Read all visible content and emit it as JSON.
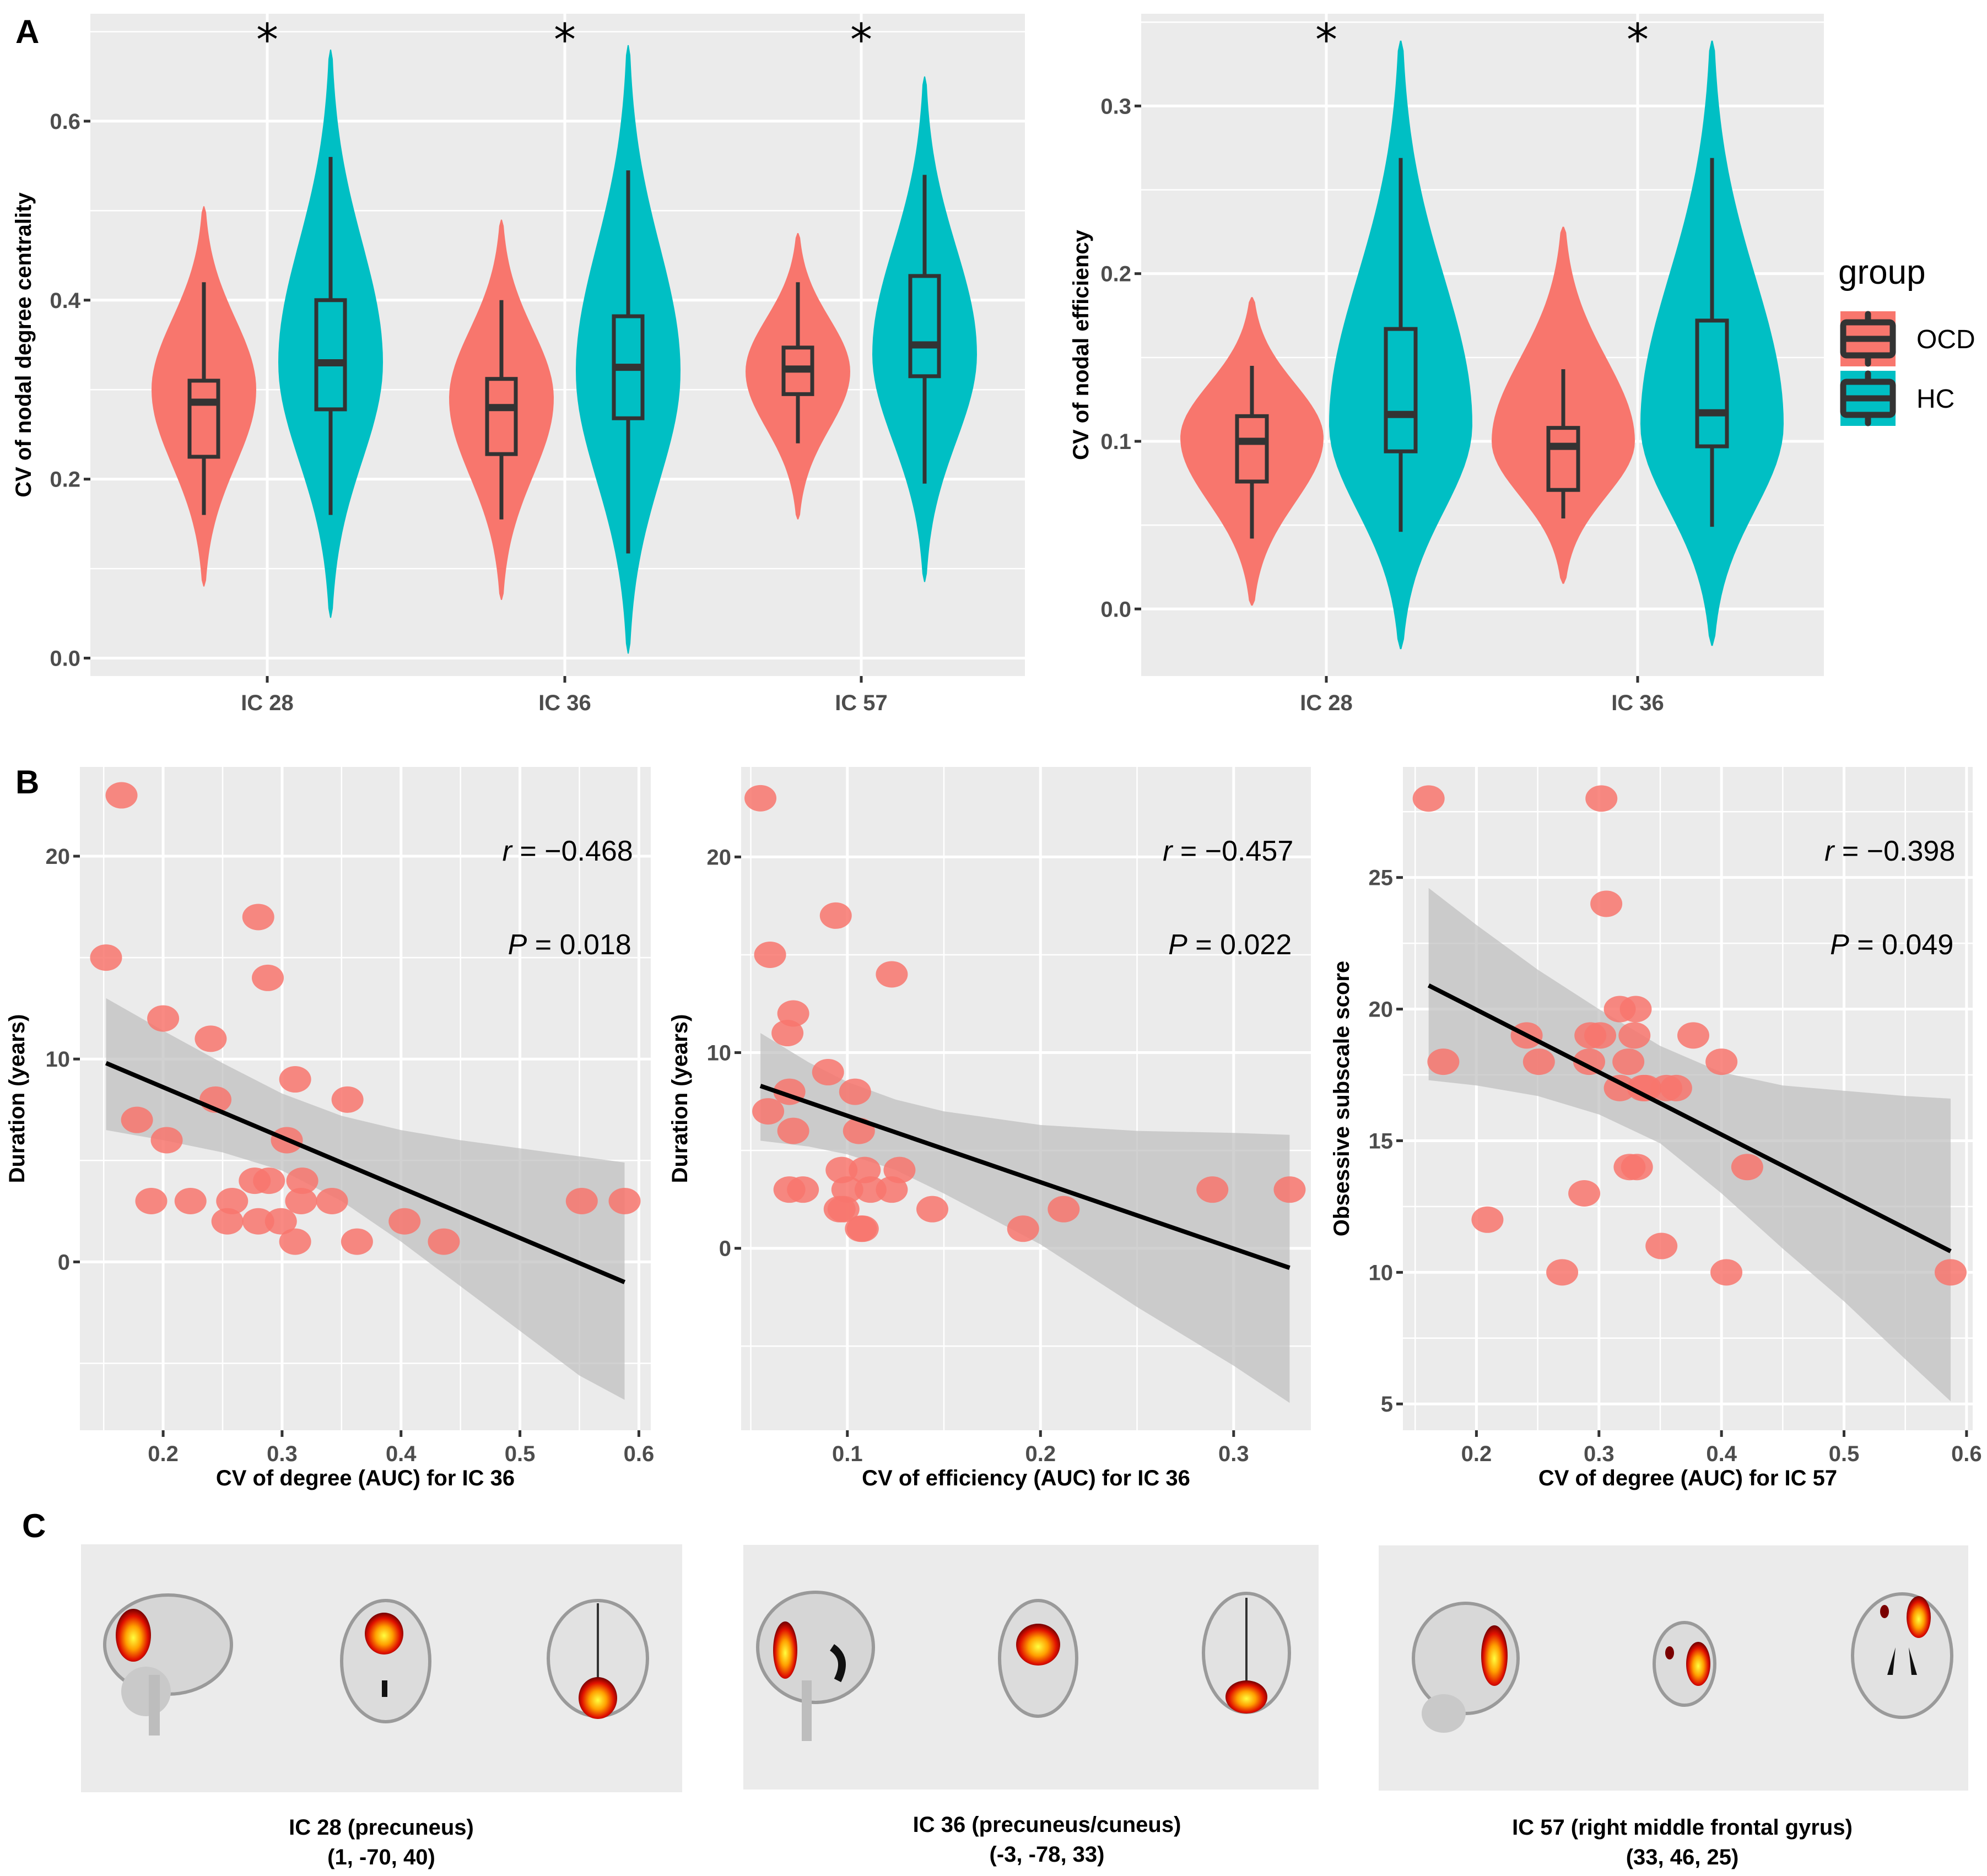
{
  "figure": {
    "panel_labels": [
      "A",
      "B",
      "C"
    ],
    "colors": {
      "OCD": "#F8766D",
      "HC": "#00BFC4",
      "panel_bg": "#EBEBEB",
      "grid": "#FFFFFF",
      "box_line": "#333333",
      "point": "#F8766D",
      "ci_band": "#BEBEBE",
      "fit_line": "#000000"
    }
  },
  "chart_data": [
    {
      "id": "A1",
      "type": "violin",
      "title": "",
      "ylabel": "CV of nodal degree centrality",
      "xlabel": "",
      "categories": [
        "IC 28",
        "IC 36",
        "IC 57"
      ],
      "ylim": [
        -0.02,
        0.72
      ],
      "yticks": [
        0.0,
        0.2,
        0.4,
        0.6
      ],
      "yticklabels": [
        "0.0",
        "0.2",
        "0.4",
        "0.6"
      ],
      "significance": [
        "*",
        "*",
        "*"
      ],
      "series": [
        {
          "name": "OCD",
          "boxes": [
            {
              "min": 0.16,
              "q1": 0.225,
              "median": 0.286,
              "q3": 0.31,
              "max": 0.42,
              "vmin": 0.08,
              "vmax": 0.505,
              "mode": 0.3
            },
            {
              "min": 0.155,
              "q1": 0.228,
              "median": 0.28,
              "q3": 0.312,
              "max": 0.4,
              "vmin": 0.065,
              "vmax": 0.49,
              "mode": 0.29
            },
            {
              "min": 0.24,
              "q1": 0.295,
              "median": 0.323,
              "q3": 0.347,
              "max": 0.42,
              "vmin": 0.155,
              "vmax": 0.475,
              "mode": 0.32
            }
          ]
        },
        {
          "name": "HC",
          "boxes": [
            {
              "min": 0.16,
              "q1": 0.278,
              "median": 0.33,
              "q3": 0.4,
              "max": 0.56,
              "vmin": 0.045,
              "vmax": 0.68,
              "mode": 0.33
            },
            {
              "min": 0.117,
              "q1": 0.268,
              "median": 0.325,
              "q3": 0.382,
              "max": 0.545,
              "vmin": 0.005,
              "vmax": 0.685,
              "mode": 0.32
            },
            {
              "min": 0.195,
              "q1": 0.315,
              "median": 0.35,
              "q3": 0.427,
              "max": 0.54,
              "vmin": 0.085,
              "vmax": 0.65,
              "mode": 0.34
            }
          ]
        }
      ]
    },
    {
      "id": "A2",
      "type": "violin",
      "title": "",
      "ylabel": "CV of nodal efficiency",
      "xlabel": "",
      "categories": [
        "IC 28",
        "IC 36"
      ],
      "ylim": [
        -0.04,
        0.355
      ],
      "yticks": [
        0.0,
        0.1,
        0.2,
        0.3
      ],
      "yticklabels": [
        "0.0",
        "0.1",
        "0.2",
        "0.3"
      ],
      "significance": [
        "*",
        "*"
      ],
      "series": [
        {
          "name": "OCD",
          "boxes": [
            {
              "min": 0.042,
              "q1": 0.076,
              "median": 0.1,
              "q3": 0.115,
              "max": 0.145,
              "vmin": 0.002,
              "vmax": 0.186,
              "mode": 0.102
            },
            {
              "min": 0.054,
              "q1": 0.071,
              "median": 0.097,
              "q3": 0.108,
              "max": 0.143,
              "vmin": 0.015,
              "vmax": 0.228,
              "mode": 0.1
            }
          ]
        },
        {
          "name": "HC",
          "boxes": [
            {
              "min": 0.046,
              "q1": 0.094,
              "median": 0.116,
              "q3": 0.167,
              "max": 0.269,
              "vmin": -0.024,
              "vmax": 0.339,
              "mode": 0.11
            },
            {
              "min": 0.049,
              "q1": 0.097,
              "median": 0.117,
              "q3": 0.172,
              "max": 0.269,
              "vmin": -0.022,
              "vmax": 0.339,
              "mode": 0.11
            }
          ]
        }
      ],
      "legend": {
        "title": "group",
        "entries": [
          "OCD",
          "HC"
        ],
        "position": "right"
      }
    },
    {
      "id": "B1",
      "type": "scatter",
      "xlabel": "CV of degree (AUC) for IC 36",
      "ylabel": "Duration (years)",
      "xlim": [
        0.13,
        0.61
      ],
      "ylim": [
        -8.3,
        24.4
      ],
      "xticks": [
        0.2,
        0.3,
        0.4,
        0.5,
        0.6
      ],
      "xticklabels": [
        "0.2",
        "0.3",
        "0.4",
        "0.5",
        "0.6"
      ],
      "yticks": [
        0,
        10,
        20
      ],
      "yticklabels": [
        "0",
        "10",
        "20"
      ],
      "annotation": {
        "r_label": "r",
        "r_value": "= −0.468",
        "p_label": "P",
        "p_value": "= 0.018"
      },
      "points": [
        [
          0.165,
          23
        ],
        [
          0.152,
          15
        ],
        [
          0.28,
          17
        ],
        [
          0.288,
          14
        ],
        [
          0.2,
          12
        ],
        [
          0.24,
          11
        ],
        [
          0.244,
          8
        ],
        [
          0.178,
          7
        ],
        [
          0.203,
          6
        ],
        [
          0.311,
          9
        ],
        [
          0.355,
          8
        ],
        [
          0.304,
          6
        ],
        [
          0.19,
          3
        ],
        [
          0.223,
          3
        ],
        [
          0.258,
          3
        ],
        [
          0.254,
          2
        ],
        [
          0.277,
          4
        ],
        [
          0.289,
          4
        ],
        [
          0.28,
          2
        ],
        [
          0.299,
          2
        ],
        [
          0.316,
          3
        ],
        [
          0.317,
          4
        ],
        [
          0.311,
          1
        ],
        [
          0.342,
          3
        ],
        [
          0.363,
          1
        ],
        [
          0.403,
          2
        ],
        [
          0.436,
          1
        ],
        [
          0.552,
          3
        ],
        [
          0.588,
          3
        ]
      ],
      "fit": {
        "x": [
          0.152,
          0.588
        ],
        "y": [
          9.8,
          -1.0
        ]
      },
      "ci": {
        "x": [
          0.152,
          0.2,
          0.25,
          0.3,
          0.35,
          0.4,
          0.45,
          0.5,
          0.55,
          0.588
        ],
        "upper": [
          13.0,
          11.4,
          9.8,
          8.3,
          7.2,
          6.5,
          6.0,
          5.6,
          5.2,
          4.9
        ],
        "lower": [
          6.5,
          6.0,
          5.4,
          4.5,
          3.0,
          1.0,
          -1.2,
          -3.4,
          -5.6,
          -6.8
        ]
      }
    },
    {
      "id": "B2",
      "type": "scatter",
      "xlabel": "CV of efficiency (AUC) for IC 36",
      "ylabel": "Duration (years)",
      "xlim": [
        0.045,
        0.34
      ],
      "ylim": [
        -9.3,
        24.6
      ],
      "xticks": [
        0.1,
        0.2,
        0.3
      ],
      "xticklabels": [
        "0.1",
        "0.2",
        "0.3"
      ],
      "yticks": [
        0,
        10,
        20
      ],
      "yticklabels": [
        "0",
        "10",
        "20"
      ],
      "annotation": {
        "r_label": "r",
        "r_value": "= −0.457",
        "p_label": "P",
        "p_value": "= 0.022"
      },
      "points": [
        [
          0.055,
          23
        ],
        [
          0.094,
          17
        ],
        [
          0.06,
          15
        ],
        [
          0.123,
          14
        ],
        [
          0.072,
          12
        ],
        [
          0.069,
          11
        ],
        [
          0.09,
          9
        ],
        [
          0.07,
          8
        ],
        [
          0.104,
          8
        ],
        [
          0.059,
          7
        ],
        [
          0.072,
          6
        ],
        [
          0.106,
          6
        ],
        [
          0.097,
          4
        ],
        [
          0.109,
          4
        ],
        [
          0.127,
          4
        ],
        [
          0.07,
          3
        ],
        [
          0.077,
          3
        ],
        [
          0.1,
          3
        ],
        [
          0.112,
          3
        ],
        [
          0.123,
          3
        ],
        [
          0.096,
          2
        ],
        [
          0.098,
          2
        ],
        [
          0.144,
          2
        ],
        [
          0.107,
          1
        ],
        [
          0.108,
          1
        ],
        [
          0.191,
          1
        ],
        [
          0.212,
          2
        ],
        [
          0.289,
          3
        ],
        [
          0.329,
          3
        ]
      ],
      "fit": {
        "x": [
          0.055,
          0.329
        ],
        "y": [
          8.3,
          -1.0
        ]
      },
      "ci": {
        "x": [
          0.055,
          0.08,
          0.1,
          0.125,
          0.15,
          0.2,
          0.25,
          0.3,
          0.329
        ],
        "upper": [
          11.0,
          9.5,
          8.5,
          7.6,
          7.0,
          6.3,
          6.0,
          5.9,
          5.8
        ],
        "lower": [
          5.5,
          5.2,
          4.8,
          4.0,
          2.8,
          0.2,
          -3.0,
          -6.0,
          -7.9
        ]
      }
    },
    {
      "id": "B3",
      "type": "scatter",
      "xlabel": "CV of degree (AUC) for IC 57",
      "ylabel": "Obsessive subscale score",
      "xlim": [
        0.14,
        0.605
      ],
      "ylim": [
        4.0,
        29.2
      ],
      "xticks": [
        0.2,
        0.3,
        0.4,
        0.5,
        0.6
      ],
      "xticklabels": [
        "0.2",
        "0.3",
        "0.4",
        "0.5",
        "0.6"
      ],
      "yticks": [
        5,
        10,
        15,
        20,
        25
      ],
      "yticklabels": [
        "5",
        "10",
        "15",
        "20",
        "25"
      ],
      "annotation": {
        "r_label": "r",
        "r_value": "= −0.398",
        "p_label": "P",
        "p_value": "= 0.049"
      },
      "points": [
        [
          0.161,
          28
        ],
        [
          0.302,
          28
        ],
        [
          0.306,
          24
        ],
        [
          0.317,
          20
        ],
        [
          0.33,
          20
        ],
        [
          0.241,
          19
        ],
        [
          0.293,
          19
        ],
        [
          0.301,
          19
        ],
        [
          0.329,
          19
        ],
        [
          0.377,
          19
        ],
        [
          0.173,
          18
        ],
        [
          0.251,
          18
        ],
        [
          0.292,
          18
        ],
        [
          0.324,
          18
        ],
        [
          0.4,
          18
        ],
        [
          0.317,
          17
        ],
        [
          0.336,
          17
        ],
        [
          0.338,
          17
        ],
        [
          0.355,
          17
        ],
        [
          0.363,
          17
        ],
        [
          0.325,
          14
        ],
        [
          0.331,
          14
        ],
        [
          0.421,
          14
        ],
        [
          0.288,
          13
        ],
        [
          0.209,
          12
        ],
        [
          0.351,
          11
        ],
        [
          0.27,
          10
        ],
        [
          0.404,
          10
        ],
        [
          0.587,
          10
        ]
      ],
      "fit": {
        "x": [
          0.161,
          0.587
        ],
        "y": [
          20.9,
          10.8
        ]
      },
      "ci": {
        "x": [
          0.161,
          0.2,
          0.25,
          0.3,
          0.35,
          0.4,
          0.45,
          0.5,
          0.55,
          0.587
        ],
        "upper": [
          24.6,
          23.2,
          21.5,
          20.0,
          18.6,
          17.6,
          17.1,
          16.9,
          16.7,
          16.6
        ],
        "lower": [
          17.3,
          17.1,
          16.7,
          16.0,
          14.9,
          13.0,
          10.9,
          8.9,
          6.7,
          5.1
        ]
      }
    }
  ],
  "panel_c": {
    "items": [
      {
        "title": "IC 28 (precuneus)",
        "coords": "(1, -70, 40)"
      },
      {
        "title": "IC 36 (precuneus/cuneus)",
        "coords": "(-3, -78, 33)"
      },
      {
        "title": "IC 57 (right middle frontal gyrus)",
        "coords": "(33, 46, 25)"
      }
    ]
  }
}
